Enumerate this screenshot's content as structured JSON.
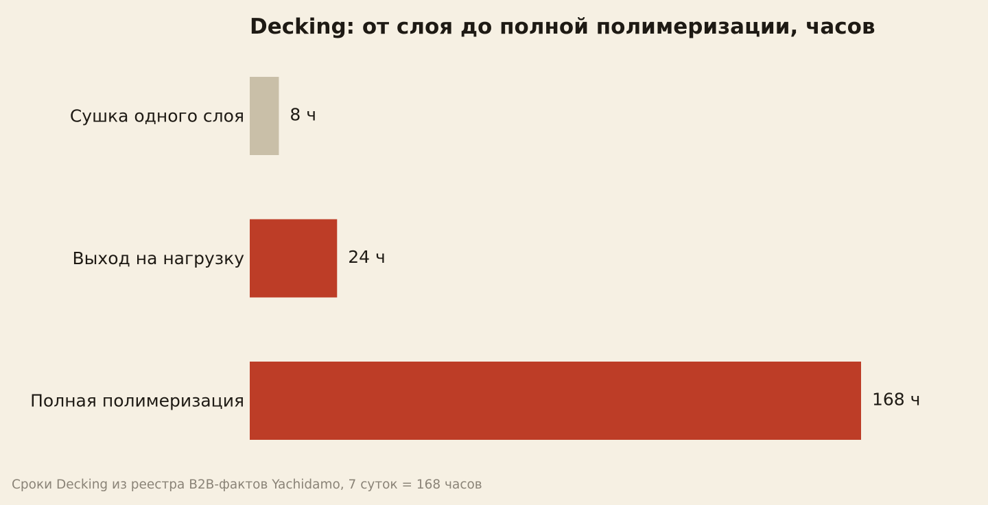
{
  "chart_data": {
    "type": "bar",
    "orientation": "horizontal",
    "title": "Decking: от слоя до полной полимеризации, часов",
    "categories": [
      "Сушка одного слоя",
      "Выход на нагрузку",
      "Полная полимеризация"
    ],
    "values": [
      8,
      24,
      168
    ],
    "value_labels": [
      "8 ч",
      "24 ч",
      "168 ч"
    ],
    "bar_colors": [
      "#c9bfa8",
      "#bd3d27",
      "#bd3d27"
    ],
    "xlim": [
      0,
      168
    ],
    "grid": false,
    "xlabel": "",
    "ylabel": "",
    "source": "Сроки Decking из реестра B2B-фактов Yachidamo, 7 суток = 168 часов"
  }
}
